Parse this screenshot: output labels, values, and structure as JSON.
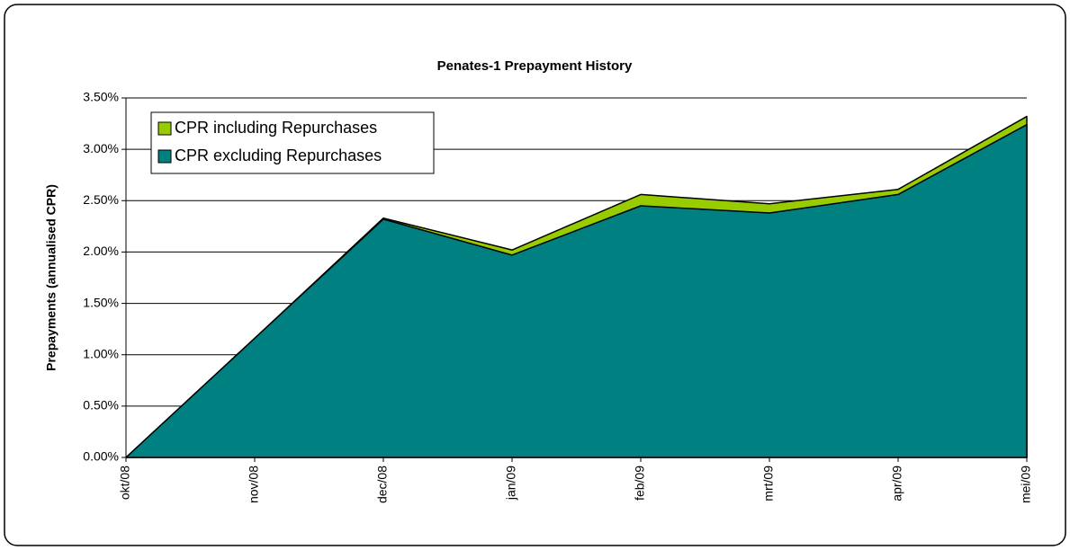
{
  "chart_data": {
    "type": "area",
    "title": "Penates-1 Prepayment History",
    "y_label": "Prepayments (annualised CPR)",
    "categories": [
      "okt/08",
      "nov/08",
      "dec/08",
      "jan/09",
      "feb/09",
      "mrt/09",
      "apr/09",
      "mei/09"
    ],
    "series": [
      {
        "name": "CPR including Repurchases",
        "color": "#99cc00",
        "values": [
          0,
          1.16,
          2.33,
          2.02,
          2.56,
          2.47,
          2.61,
          3.32
        ]
      },
      {
        "name": "CPR excluding Repurchases",
        "color": "#008080",
        "values": [
          0,
          1.16,
          2.32,
          1.97,
          2.45,
          2.38,
          2.56,
          3.24
        ]
      }
    ],
    "ylim": [
      0,
      3.5
    ],
    "yticks": [
      {
        "value": 0,
        "label": "0.00%"
      },
      {
        "value": 0.5,
        "label": "0.50%"
      },
      {
        "value": 1,
        "label": "1.00%"
      },
      {
        "value": 1.5,
        "label": "1.50%"
      },
      {
        "value": 2,
        "label": "2.00%"
      },
      {
        "value": 2.5,
        "label": "2.50%"
      },
      {
        "value": 3,
        "label": "3.00%"
      },
      {
        "value": 3.5,
        "label": "3.50%"
      }
    ],
    "grid": true,
    "legend": "top-left"
  }
}
